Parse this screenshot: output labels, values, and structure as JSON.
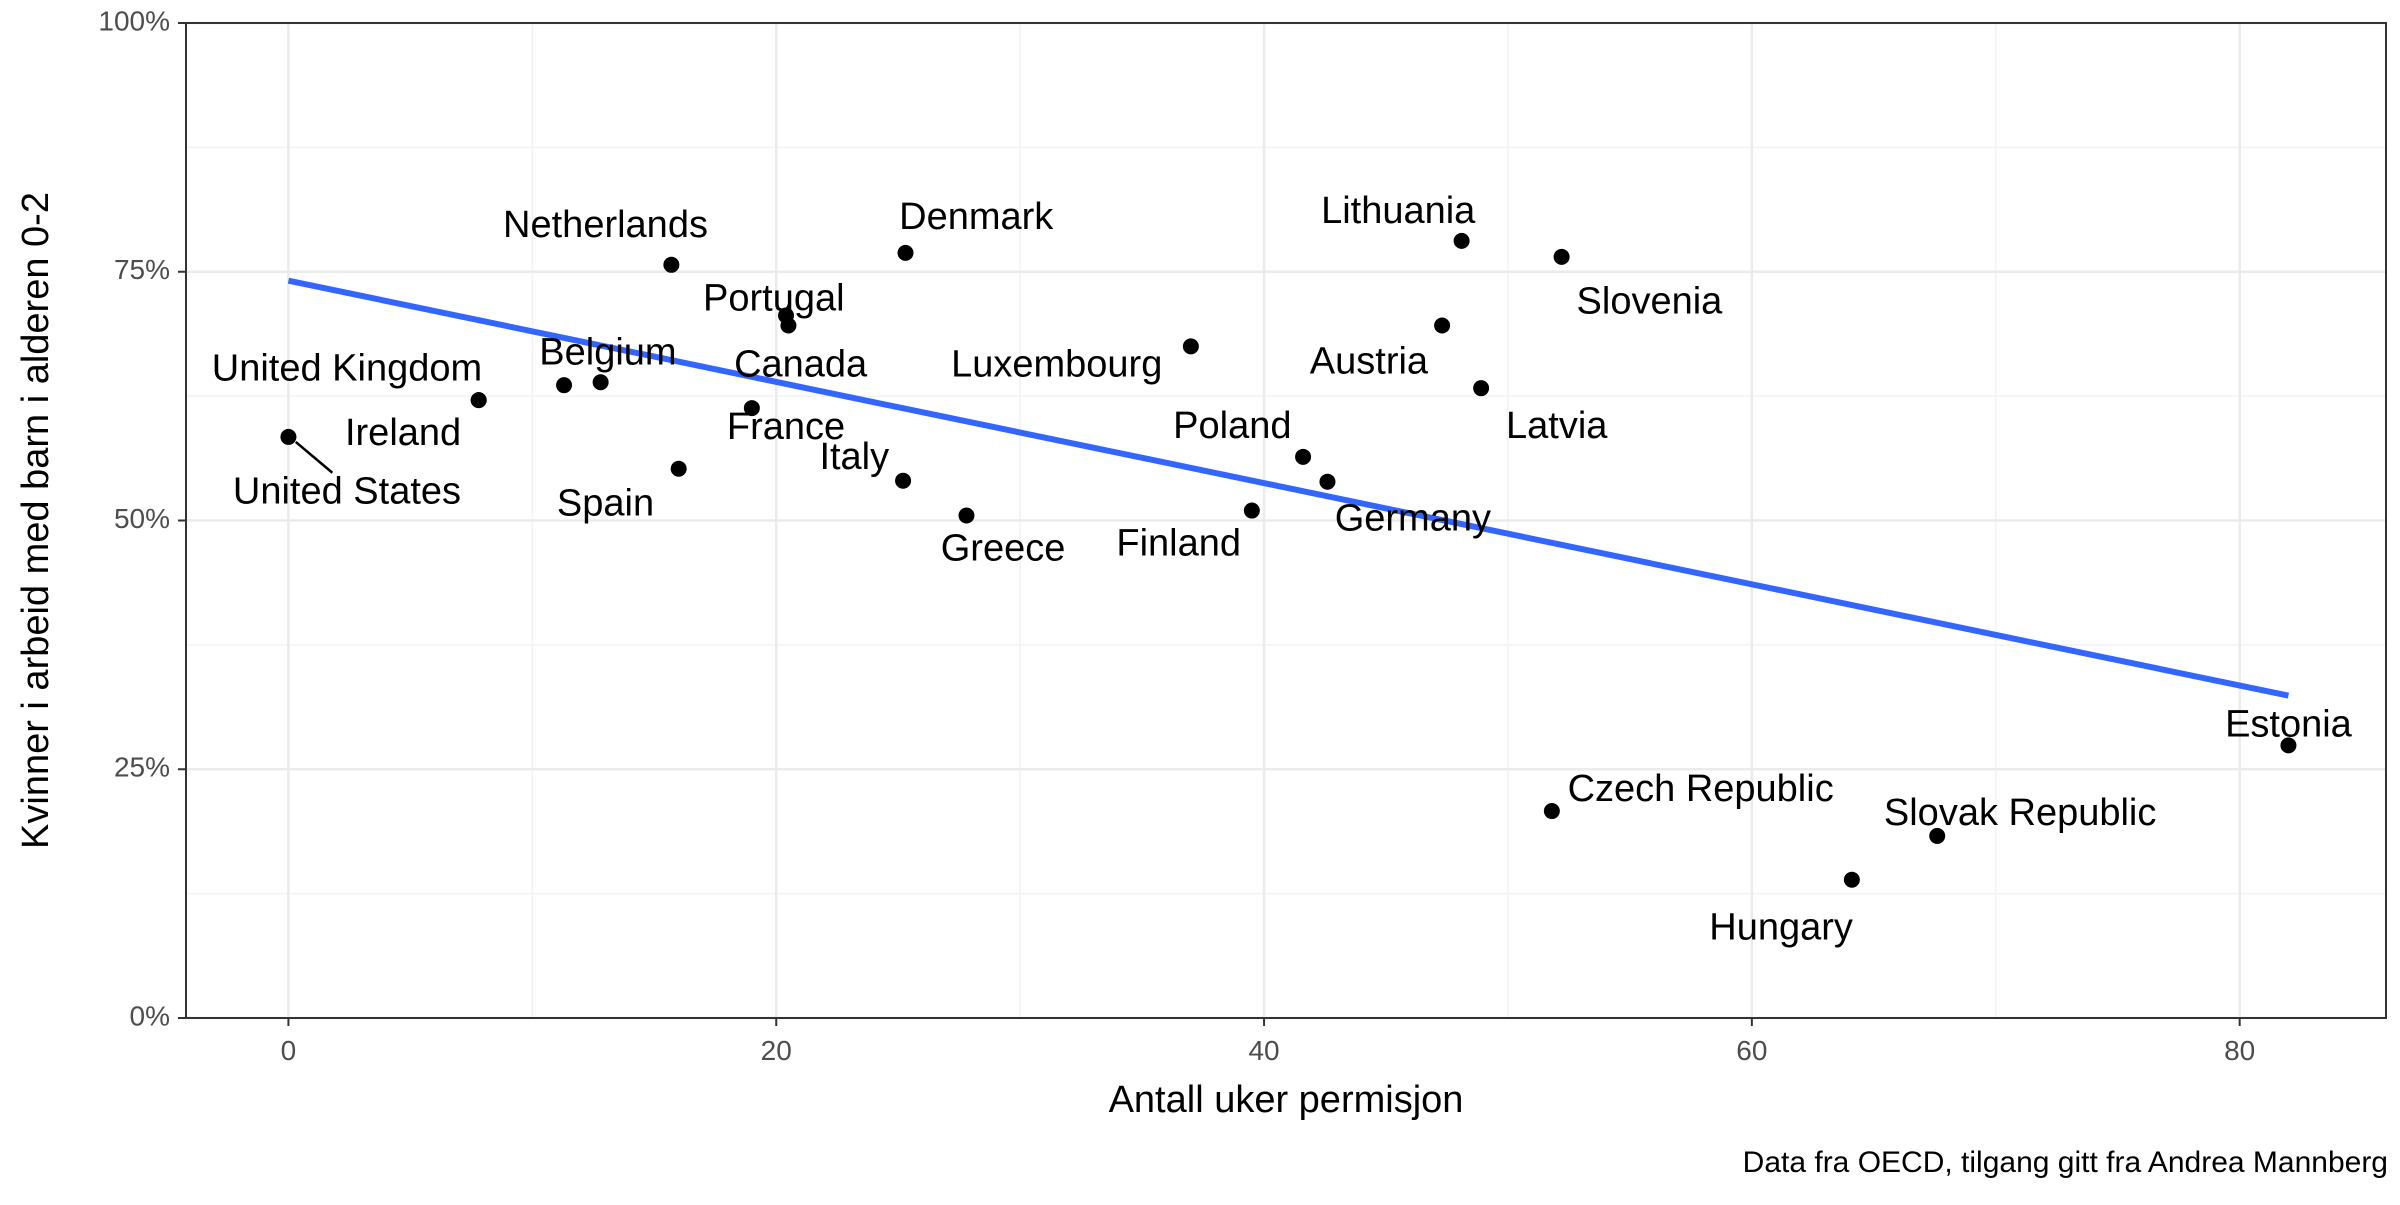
{
  "chart_data": {
    "type": "scatter",
    "xlabel": "Antall uker permisjon",
    "ylabel": "Kvinner i arbeid med barn i alderen 0-2",
    "caption": "Data fra OECD, tilgang gitt fra Andrea Mannberg",
    "xlim": [
      -4.2,
      86
    ],
    "ylim": [
      0,
      100
    ],
    "x_ticks": [
      0,
      20,
      40,
      60,
      80
    ],
    "y_ticks": [
      0,
      25,
      50,
      75,
      100
    ],
    "y_tick_labels": [
      "0%",
      "25%",
      "50%",
      "75%",
      "100%"
    ],
    "grid": true,
    "points": [
      {
        "label": "United States",
        "x": 0,
        "y": 58.4
      },
      {
        "label": "United Kingdom",
        "x": 7.8,
        "y": 62.1
      },
      {
        "label": "Ireland",
        "x": 7.8,
        "y": 62.1
      },
      {
        "label": "Belgium",
        "x": 11.3,
        "y": 63.6
      },
      {
        "label": "Belgium",
        "x": 12.8,
        "y": 63.9
      },
      {
        "label": "Netherlands",
        "x": 15.7,
        "y": 75.7
      },
      {
        "label": "Spain",
        "x": 16.0,
        "y": 55.2
      },
      {
        "label": "France",
        "x": 19.0,
        "y": 61.3
      },
      {
        "label": "Portugal",
        "x": 20.4,
        "y": 70.6
      },
      {
        "label": "Canada",
        "x": 20.5,
        "y": 69.6
      },
      {
        "label": "Italy",
        "x": 25.2,
        "y": 54.0
      },
      {
        "label": "Denmark",
        "x": 25.3,
        "y": 76.9
      },
      {
        "label": "Greece",
        "x": 27.8,
        "y": 50.5
      },
      {
        "label": "Luxembourg",
        "x": 37.0,
        "y": 67.5
      },
      {
        "label": "Finland",
        "x": 39.5,
        "y": 51.0
      },
      {
        "label": "Poland",
        "x": 41.6,
        "y": 56.4
      },
      {
        "label": "Germany",
        "x": 42.6,
        "y": 53.9
      },
      {
        "label": "Austria",
        "x": 47.3,
        "y": 69.6
      },
      {
        "label": "Lithuania",
        "x": 48.1,
        "y": 78.1
      },
      {
        "label": "Latvia",
        "x": 48.9,
        "y": 63.3
      },
      {
        "label": "Czech Republic",
        "x": 51.8,
        "y": 20.8
      },
      {
        "label": "Slovenia",
        "x": 52.2,
        "y": 76.5
      },
      {
        "label": "Hungary",
        "x": 64.1,
        "y": 13.9
      },
      {
        "label": "Slovak Republic",
        "x": 67.6,
        "y": 18.3
      },
      {
        "label": "Estonia",
        "x": 82.0,
        "y": 27.4
      }
    ],
    "labels": [
      {
        "text": "United States",
        "x": 2.4,
        "y": 52.7,
        "anchor": "middle"
      },
      {
        "text": "Ireland",
        "x": 4.7,
        "y": 58.6,
        "anchor": "middle"
      },
      {
        "text": "United Kingdom",
        "x": 2.4,
        "y": 65.1,
        "anchor": "middle"
      },
      {
        "text": "Belgium",
        "x": 13.1,
        "y": 66.7,
        "anchor": "middle"
      },
      {
        "text": "Netherlands",
        "x": 13.0,
        "y": 79.5,
        "anchor": "middle"
      },
      {
        "text": "Spain",
        "x": 13.0,
        "y": 51.5,
        "anchor": "middle"
      },
      {
        "text": "France",
        "x": 20.4,
        "y": 59.2,
        "anchor": "middle"
      },
      {
        "text": "Portugal",
        "x": 19.9,
        "y": 72.1,
        "anchor": "middle"
      },
      {
        "text": "Canada",
        "x": 21.0,
        "y": 65.5,
        "anchor": "middle"
      },
      {
        "text": "Italy",
        "x": 23.2,
        "y": 56.2,
        "anchor": "middle"
      },
      {
        "text": "Denmark",
        "x": 28.2,
        "y": 80.3,
        "anchor": "middle"
      },
      {
        "text": "Greece",
        "x": 29.3,
        "y": 47.0,
        "anchor": "middle"
      },
      {
        "text": "Luxembourg",
        "x": 31.5,
        "y": 65.5,
        "anchor": "middle"
      },
      {
        "text": "Finland",
        "x": 36.5,
        "y": 47.5,
        "anchor": "middle"
      },
      {
        "text": "Poland",
        "x": 38.7,
        "y": 59.3,
        "anchor": "middle"
      },
      {
        "text": "Germany",
        "x": 46.1,
        "y": 50.0,
        "anchor": "middle"
      },
      {
        "text": "Austria",
        "x": 44.3,
        "y": 65.8,
        "anchor": "middle"
      },
      {
        "text": "Lithuania",
        "x": 45.5,
        "y": 80.9,
        "anchor": "middle"
      },
      {
        "text": "Latvia",
        "x": 52.0,
        "y": 59.3,
        "anchor": "middle"
      },
      {
        "text": "Slovenia",
        "x": 55.8,
        "y": 71.8,
        "anchor": "middle"
      },
      {
        "text": "Czech Republic",
        "x": 57.9,
        "y": 22.8,
        "anchor": "middle"
      },
      {
        "text": "Slovak Republic",
        "x": 71.0,
        "y": 20.4,
        "anchor": "middle"
      },
      {
        "text": "Hungary",
        "x": 61.2,
        "y": 8.9,
        "anchor": "middle"
      },
      {
        "text": "Estonia",
        "x": 82.0,
        "y": 29.3,
        "anchor": "middle"
      }
    ],
    "trend_line": {
      "color": "#3366ff",
      "x": [
        0,
        82
      ],
      "y": [
        74.1,
        32.4
      ]
    },
    "leader_lines": [
      {
        "x1": 0.3,
        "y1": 57.9,
        "x2": 1.8,
        "y2": 54.8
      }
    ]
  }
}
